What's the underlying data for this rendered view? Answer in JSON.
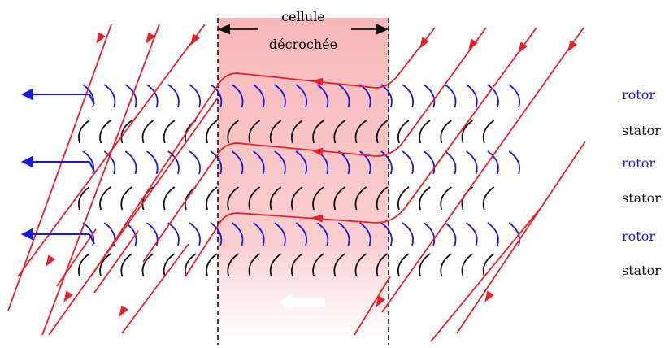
{
  "figure": {
    "cell_label_line1": "cellule",
    "cell_label_line2": "décrochée"
  },
  "row_labels": [
    {
      "text": "rotor",
      "kind": "rotor"
    },
    {
      "text": "stator",
      "kind": "stator"
    },
    {
      "text": "rotor",
      "kind": "rotor"
    },
    {
      "text": "stator",
      "kind": "stator"
    },
    {
      "text": "rotor",
      "kind": "rotor"
    },
    {
      "text": "stator",
      "kind": "stator"
    }
  ],
  "colors": {
    "rotor": "#1a1adc",
    "stator": "#111111",
    "streamline": "#e8202a",
    "arrow_blue": "#1a1adc",
    "cell_band": "#f7b4b6",
    "dashed_border": "#111111",
    "cell_arrow": "#ffffff"
  },
  "icons": {
    "stall_arrow": "arrow-left-icon",
    "flow_arrow": "arrowhead-icon"
  }
}
